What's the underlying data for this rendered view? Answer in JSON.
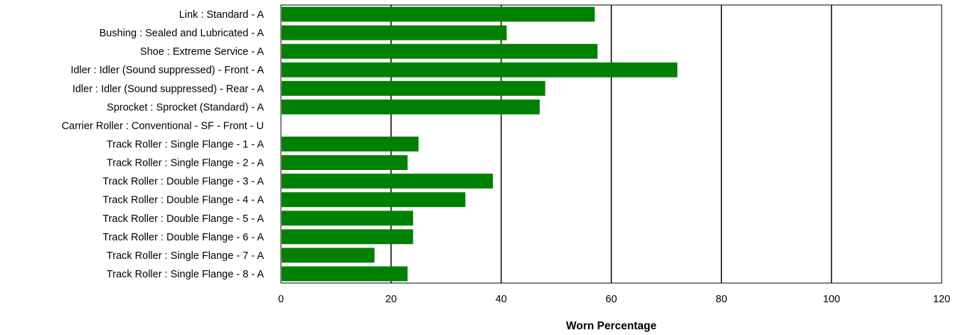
{
  "chart_data": {
    "type": "bar",
    "orientation": "horizontal",
    "categories": [
      "Link : Standard - A",
      "Bushing : Sealed  and  Lubricated - A",
      "Shoe : Extreme Service - A",
      "Idler : Idler (Sound suppressed) - Front - A",
      "Idler : Idler (Sound suppressed) - Rear - A",
      "Sprocket : Sprocket (Standard) - A",
      "Carrier Roller : Conventional - SF - Front - U",
      "Track Roller : Single Flange - 1 - A",
      "Track Roller : Single Flange - 2 - A",
      "Track Roller : Double Flange - 3 - A",
      "Track Roller : Double Flange - 4 - A",
      "Track Roller : Double Flange - 5 - A",
      "Track Roller : Double Flange - 6 - A",
      "Track Roller : Single Flange - 7 - A",
      "Track Roller : Single Flange - 8 - A"
    ],
    "values": [
      57,
      41,
      57.5,
      72,
      48,
      47,
      0,
      25,
      23,
      38.5,
      33.5,
      24,
      24,
      17,
      23
    ],
    "xlabel": "Worn Percentage",
    "ylabel": "",
    "xlim": [
      0,
      120
    ],
    "xticks": [
      0,
      20,
      40,
      60,
      80,
      100,
      120
    ],
    "grid": "vertical",
    "legend": "none",
    "colors": {
      "bar": "#008000",
      "grid": "#000000",
      "text": "#000000",
      "background": "#ffffff"
    }
  }
}
